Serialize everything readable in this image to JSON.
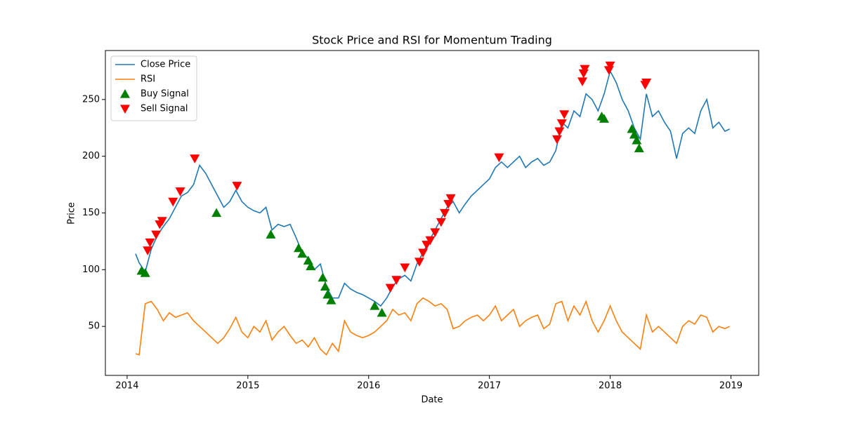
{
  "chart_data": {
    "type": "line",
    "title": "Stock Price and RSI for Momentum Trading",
    "xlabel": "Date",
    "ylabel": "Price",
    "xlim": [
      2013.82,
      2019.23
    ],
    "xticks": [
      2014,
      2015,
      2016,
      2017,
      2018,
      2019
    ],
    "ylim": [
      6.8,
      293.2
    ],
    "yticks": [
      50,
      100,
      150,
      200,
      250
    ],
    "legend": "upper left",
    "grid": false,
    "x": [
      2014.07,
      2014.1,
      2014.15,
      2014.2,
      2014.25,
      2014.3,
      2014.35,
      2014.4,
      2014.45,
      2014.5,
      2014.55,
      2014.6,
      2014.65,
      2014.7,
      2014.75,
      2014.8,
      2014.85,
      2014.9,
      2014.95,
      2015.0,
      2015.05,
      2015.1,
      2015.15,
      2015.2,
      2015.25,
      2015.3,
      2015.35,
      2015.4,
      2015.45,
      2015.5,
      2015.55,
      2015.6,
      2015.65,
      2015.7,
      2015.75,
      2015.8,
      2015.85,
      2015.9,
      2015.95,
      2016.0,
      2016.05,
      2016.1,
      2016.15,
      2016.2,
      2016.25,
      2016.3,
      2016.35,
      2016.4,
      2016.45,
      2016.5,
      2016.55,
      2016.6,
      2016.65,
      2016.7,
      2016.75,
      2016.8,
      2016.85,
      2016.9,
      2016.95,
      2017.0,
      2017.05,
      2017.1,
      2017.15,
      2017.2,
      2017.25,
      2017.3,
      2017.35,
      2017.4,
      2017.45,
      2017.5,
      2017.55,
      2017.6,
      2017.65,
      2017.7,
      2017.75,
      2017.8,
      2017.85,
      2017.9,
      2017.95,
      2018.0,
      2018.05,
      2018.1,
      2018.15,
      2018.2,
      2018.25,
      2018.3,
      2018.35,
      2018.4,
      2018.45,
      2018.5,
      2018.55,
      2018.6,
      2018.65,
      2018.7,
      2018.75,
      2018.8,
      2018.85,
      2018.9,
      2018.95,
      2018.99
    ],
    "series": [
      {
        "name": "Close Price",
        "color": "#1f77b4",
        "values": [
          114,
          106,
          98,
          118,
          130,
          138,
          145,
          155,
          165,
          168,
          175,
          192,
          185,
          175,
          165,
          155,
          160,
          170,
          160,
          155,
          152,
          150,
          155,
          135,
          140,
          138,
          140,
          128,
          115,
          110,
          100,
          105,
          85,
          75,
          75,
          88,
          83,
          80,
          78,
          75,
          72,
          68,
          75,
          85,
          92,
          95,
          90,
          105,
          115,
          125,
          135,
          145,
          155,
          160,
          150,
          158,
          165,
          170,
          175,
          180,
          190,
          195,
          190,
          195,
          200,
          190,
          195,
          198,
          192,
          195,
          205,
          230,
          225,
          240,
          235,
          255,
          250,
          240,
          255,
          275,
          265,
          250,
          240,
          225,
          215,
          255,
          235,
          240,
          230,
          222,
          198,
          220,
          225,
          220,
          240,
          250,
          225,
          230,
          222,
          224
        ]
      },
      {
        "name": "RSI",
        "color": "#ff7f0e",
        "values": [
          26,
          25,
          70,
          72,
          65,
          55,
          62,
          58,
          60,
          62,
          55,
          50,
          45,
          40,
          35,
          40,
          48,
          58,
          45,
          40,
          50,
          45,
          55,
          38,
          45,
          50,
          42,
          35,
          38,
          32,
          40,
          30,
          25,
          35,
          28,
          55,
          45,
          42,
          40,
          42,
          45,
          50,
          55,
          65,
          60,
          62,
          55,
          70,
          75,
          72,
          68,
          70,
          65,
          48,
          50,
          55,
          58,
          60,
          55,
          60,
          68,
          55,
          60,
          65,
          50,
          55,
          58,
          60,
          48,
          52,
          70,
          72,
          55,
          68,
          60,
          72,
          55,
          45,
          55,
          68,
          55,
          45,
          40,
          35,
          30,
          60,
          45,
          50,
          45,
          40,
          35,
          50,
          55,
          52,
          60,
          58,
          45,
          50,
          48,
          50
        ]
      },
      {
        "name": "Buy Signal",
        "color": "green",
        "marker": "^",
        "x": [
          2014.12,
          2014.15,
          2014.74,
          2015.19,
          2015.42,
          2015.45,
          2015.5,
          2015.52,
          2015.62,
          2015.64,
          2015.66,
          2015.69,
          2016.05,
          2016.11,
          2017.93,
          2017.95,
          2018.18,
          2018.2,
          2018.22,
          2018.24
        ],
        "values": [
          99,
          97,
          150,
          131,
          119,
          114,
          108,
          103,
          93,
          85,
          78,
          73,
          68,
          62,
          235,
          233,
          224,
          219,
          214,
          207
        ]
      },
      {
        "name": "Sell Signal",
        "color": "red",
        "marker": "v",
        "x": [
          2014.17,
          2014.19,
          2014.24,
          2014.27,
          2014.29,
          2014.38,
          2014.44,
          2014.56,
          2014.91,
          2016.18,
          2016.23,
          2016.3,
          2016.42,
          2016.45,
          2016.48,
          2016.51,
          2016.55,
          2016.6,
          2016.63,
          2016.66,
          2016.68,
          2017.08,
          2017.56,
          2017.58,
          2017.6,
          2017.62,
          2017.77,
          2017.78,
          2017.79,
          2017.99,
          2018.0,
          2018.29,
          2018.3
        ],
        "values": [
          117,
          124,
          131,
          140,
          143,
          160,
          169,
          198,
          174,
          84,
          91,
          102,
          107,
          115,
          122,
          126,
          133,
          142,
          150,
          158,
          163,
          199,
          215,
          222,
          229,
          237,
          266,
          273,
          277,
          276,
          280,
          263,
          265
        ]
      }
    ]
  }
}
